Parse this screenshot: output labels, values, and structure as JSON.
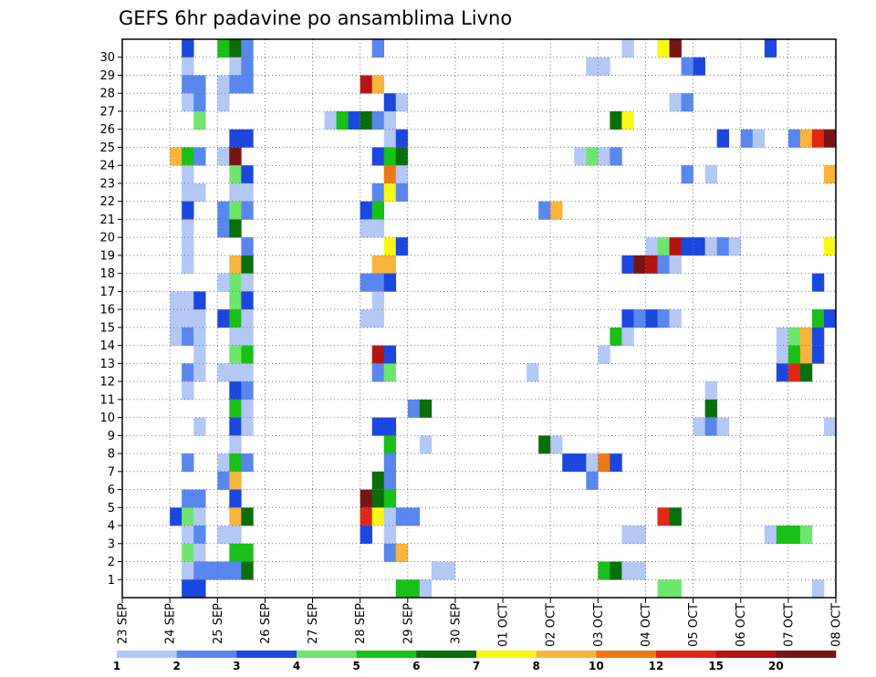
{
  "chart_data": {
    "type": "heatmap",
    "title": "GEFS 6hr padavine po ansamblima Livno",
    "xlabel": "",
    "ylabel": "",
    "x_ticks": [
      "23 SEP",
      "24 SEP",
      "25 SEP",
      "26 SEP",
      "27 SEP",
      "28 SEP",
      "29 SEP",
      "30 SEP",
      "01 OCT",
      "02 OCT",
      "03 OCT",
      "04 OCT",
      "05 OCT",
      "06 OCT",
      "07 OCT",
      "08 OCT"
    ],
    "y_ticks": [
      "1",
      "2",
      "3",
      "4",
      "5",
      "6",
      "7",
      "8",
      "9",
      "10",
      "11",
      "12",
      "13",
      "14",
      "15",
      "16",
      "17",
      "18",
      "19",
      "20",
      "21",
      "22",
      "23",
      "24",
      "25",
      "26",
      "27",
      "28",
      "29",
      "30"
    ],
    "members": 31,
    "steps_per_day": 4,
    "steps": 60,
    "grid": true,
    "legend": {
      "placement": "bottom",
      "labels": [
        "1",
        "2",
        "3",
        "4",
        "5",
        "6",
        "7",
        "8",
        "10",
        "12",
        "15",
        "20"
      ],
      "colors": [
        "#b4c8f5",
        "#5a87ee",
        "#1c47de",
        "#6ee66e",
        "#18c018",
        "#0a6e0a",
        "#f8f814",
        "#f8b43c",
        "#f07814",
        "#e02814",
        "#b41414",
        "#781414"
      ]
    },
    "cells": [
      [
        30,
        [
          [
            5,
            2
          ],
          [
            8,
            4
          ],
          [
            9,
            5
          ],
          [
            10,
            1
          ],
          [
            21,
            1
          ],
          [
            42,
            0
          ],
          [
            45,
            6
          ],
          [
            46,
            11
          ],
          [
            54,
            2
          ]
        ]
      ],
      [
        29,
        [
          [
            5,
            0
          ],
          [
            9,
            0
          ],
          [
            10,
            1
          ],
          [
            39,
            0
          ],
          [
            40,
            0
          ],
          [
            47,
            1
          ],
          [
            48,
            2
          ]
        ]
      ],
      [
        28,
        [
          [
            5,
            1
          ],
          [
            6,
            1
          ],
          [
            8,
            0
          ],
          [
            9,
            1
          ],
          [
            10,
            1
          ],
          [
            20,
            10
          ],
          [
            21,
            7
          ]
        ]
      ],
      [
        27,
        [
          [
            5,
            0
          ],
          [
            6,
            1
          ],
          [
            8,
            0
          ],
          [
            22,
            2
          ],
          [
            23,
            0
          ],
          [
            46,
            0
          ],
          [
            47,
            1
          ]
        ]
      ],
      [
        26,
        [
          [
            6,
            3
          ],
          [
            17,
            0
          ],
          [
            18,
            4
          ],
          [
            19,
            2
          ],
          [
            20,
            5
          ],
          [
            21,
            1
          ],
          [
            22,
            0
          ],
          [
            41,
            5
          ],
          [
            42,
            6
          ]
        ]
      ],
      [
        25,
        [
          [
            9,
            2
          ],
          [
            10,
            2
          ],
          [
            22,
            0
          ],
          [
            23,
            2
          ],
          [
            50,
            2
          ],
          [
            52,
            1
          ],
          [
            53,
            0
          ],
          [
            56,
            1
          ],
          [
            57,
            7
          ],
          [
            58,
            9
          ],
          [
            59,
            11
          ]
        ]
      ],
      [
        24,
        [
          [
            4,
            7
          ],
          [
            5,
            4
          ],
          [
            6,
            1
          ],
          [
            8,
            0
          ],
          [
            9,
            11
          ],
          [
            21,
            2
          ],
          [
            22,
            4
          ],
          [
            23,
            5
          ],
          [
            38,
            0
          ],
          [
            39,
            3
          ],
          [
            40,
            0
          ],
          [
            41,
            1
          ]
        ]
      ],
      [
        23,
        [
          [
            5,
            0
          ],
          [
            9,
            3
          ],
          [
            10,
            2
          ],
          [
            22,
            8
          ],
          [
            23,
            0
          ],
          [
            47,
            1
          ],
          [
            49,
            0
          ],
          [
            59,
            7
          ]
        ]
      ],
      [
        22,
        [
          [
            5,
            0
          ],
          [
            6,
            0
          ],
          [
            9,
            0
          ],
          [
            10,
            0
          ],
          [
            21,
            1
          ],
          [
            22,
            6
          ],
          [
            23,
            1
          ]
        ]
      ],
      [
        21,
        [
          [
            5,
            2
          ],
          [
            8,
            1
          ],
          [
            9,
            3
          ],
          [
            10,
            1
          ],
          [
            20,
            2
          ],
          [
            21,
            4
          ],
          [
            35,
            1
          ],
          [
            36,
            7
          ]
        ]
      ],
      [
        20,
        [
          [
            5,
            0
          ],
          [
            8,
            1
          ],
          [
            9,
            5
          ],
          [
            20,
            0
          ],
          [
            21,
            0
          ]
        ]
      ],
      [
        19,
        [
          [
            5,
            0
          ],
          [
            10,
            1
          ],
          [
            22,
            6
          ],
          [
            23,
            2
          ],
          [
            44,
            0
          ],
          [
            45,
            3
          ],
          [
            46,
            10
          ],
          [
            47,
            2
          ],
          [
            48,
            2
          ],
          [
            49,
            0
          ],
          [
            50,
            1
          ],
          [
            51,
            0
          ],
          [
            59,
            6
          ]
        ]
      ],
      [
        18,
        [
          [
            5,
            0
          ],
          [
            9,
            7
          ],
          [
            10,
            5
          ],
          [
            21,
            7
          ],
          [
            22,
            7
          ],
          [
            42,
            2
          ],
          [
            43,
            11
          ],
          [
            44,
            10
          ],
          [
            45,
            1
          ],
          [
            46,
            0
          ]
        ]
      ],
      [
        17,
        [
          [
            8,
            0
          ],
          [
            9,
            3
          ],
          [
            10,
            0
          ],
          [
            20,
            1
          ],
          [
            21,
            1
          ],
          [
            22,
            2
          ],
          [
            58,
            2
          ]
        ]
      ],
      [
        16,
        [
          [
            4,
            0
          ],
          [
            5,
            0
          ],
          [
            6,
            2
          ],
          [
            9,
            3
          ],
          [
            10,
            2
          ],
          [
            21,
            0
          ]
        ]
      ],
      [
        15,
        [
          [
            4,
            0
          ],
          [
            5,
            0
          ],
          [
            6,
            0
          ],
          [
            8,
            2
          ],
          [
            9,
            4
          ],
          [
            10,
            0
          ],
          [
            20,
            0
          ],
          [
            21,
            0
          ],
          [
            42,
            2
          ],
          [
            43,
            1
          ],
          [
            44,
            2
          ],
          [
            45,
            1
          ],
          [
            46,
            0
          ],
          [
            58,
            4
          ],
          [
            59,
            2
          ]
        ]
      ],
      [
        14,
        [
          [
            4,
            0
          ],
          [
            5,
            1
          ],
          [
            6,
            0
          ],
          [
            9,
            0
          ],
          [
            10,
            0
          ],
          [
            41,
            4
          ],
          [
            42,
            0
          ],
          [
            55,
            0
          ],
          [
            56,
            3
          ],
          [
            57,
            7
          ],
          [
            58,
            2
          ]
        ]
      ],
      [
        13,
        [
          [
            6,
            0
          ],
          [
            9,
            3
          ],
          [
            10,
            4
          ],
          [
            21,
            10
          ],
          [
            22,
            2
          ],
          [
            40,
            0
          ],
          [
            55,
            0
          ],
          [
            56,
            4
          ],
          [
            57,
            7
          ],
          [
            58,
            2
          ]
        ]
      ],
      [
        12,
        [
          [
            5,
            1
          ],
          [
            6,
            0
          ],
          [
            8,
            0
          ],
          [
            9,
            0
          ],
          [
            10,
            0
          ],
          [
            21,
            1
          ],
          [
            22,
            3
          ],
          [
            34,
            0
          ],
          [
            55,
            2
          ],
          [
            56,
            9
          ],
          [
            57,
            5
          ]
        ]
      ],
      [
        11,
        [
          [
            5,
            0
          ],
          [
            9,
            2
          ],
          [
            10,
            1
          ],
          [
            49,
            0
          ]
        ]
      ],
      [
        10,
        [
          [
            9,
            4
          ],
          [
            10,
            0
          ],
          [
            24,
            1
          ],
          [
            25,
            5
          ],
          [
            49,
            5
          ]
        ]
      ],
      [
        9,
        [
          [
            6,
            0
          ],
          [
            9,
            2
          ],
          [
            10,
            0
          ],
          [
            21,
            2
          ],
          [
            22,
            2
          ],
          [
            48,
            0
          ],
          [
            49,
            1
          ],
          [
            50,
            0
          ],
          [
            59,
            0
          ]
        ]
      ],
      [
        8,
        [
          [
            9,
            0
          ],
          [
            22,
            4
          ],
          [
            25,
            0
          ],
          [
            35,
            5
          ],
          [
            36,
            0
          ]
        ]
      ],
      [
        7,
        [
          [
            5,
            1
          ],
          [
            8,
            0
          ],
          [
            9,
            4
          ],
          [
            10,
            1
          ],
          [
            22,
            1
          ],
          [
            37,
            2
          ],
          [
            38,
            2
          ],
          [
            39,
            0
          ],
          [
            40,
            8
          ],
          [
            41,
            2
          ]
        ]
      ],
      [
        6,
        [
          [
            8,
            1
          ],
          [
            9,
            7
          ],
          [
            21,
            5
          ],
          [
            22,
            1
          ],
          [
            39,
            1
          ]
        ]
      ],
      [
        5,
        [
          [
            5,
            1
          ],
          [
            6,
            1
          ],
          [
            9,
            2
          ],
          [
            20,
            11
          ],
          [
            21,
            5
          ],
          [
            22,
            4
          ]
        ]
      ],
      [
        4,
        [
          [
            4,
            2
          ],
          [
            5,
            3
          ],
          [
            6,
            0
          ],
          [
            9,
            7
          ],
          [
            10,
            5
          ],
          [
            20,
            9
          ],
          [
            21,
            6
          ],
          [
            22,
            0
          ],
          [
            23,
            1
          ],
          [
            24,
            1
          ],
          [
            45,
            9
          ],
          [
            46,
            5
          ]
        ]
      ],
      [
        3,
        [
          [
            5,
            0
          ],
          [
            6,
            1
          ],
          [
            8,
            0
          ],
          [
            9,
            0
          ],
          [
            20,
            2
          ],
          [
            22,
            0
          ],
          [
            42,
            0
          ],
          [
            43,
            0
          ],
          [
            54,
            0
          ],
          [
            55,
            4
          ],
          [
            56,
            4
          ],
          [
            57,
            3
          ]
        ]
      ],
      [
        2,
        [
          [
            5,
            3
          ],
          [
            6,
            0
          ],
          [
            9,
            4
          ],
          [
            10,
            4
          ],
          [
            22,
            1
          ],
          [
            23,
            7
          ]
        ]
      ],
      [
        1,
        [
          [
            5,
            0
          ],
          [
            6,
            1
          ],
          [
            7,
            1
          ],
          [
            8,
            1
          ],
          [
            9,
            1
          ],
          [
            10,
            5
          ],
          [
            26,
            0
          ],
          [
            27,
            0
          ],
          [
            40,
            4
          ],
          [
            41,
            5
          ],
          [
            42,
            0
          ],
          [
            43,
            0
          ]
        ]
      ],
      [
        0,
        [
          [
            5,
            2
          ],
          [
            6,
            2
          ],
          [
            23,
            4
          ],
          [
            24,
            4
          ],
          [
            25,
            0
          ],
          [
            45,
            3
          ],
          [
            46,
            3
          ],
          [
            58,
            0
          ]
        ]
      ]
    ]
  }
}
